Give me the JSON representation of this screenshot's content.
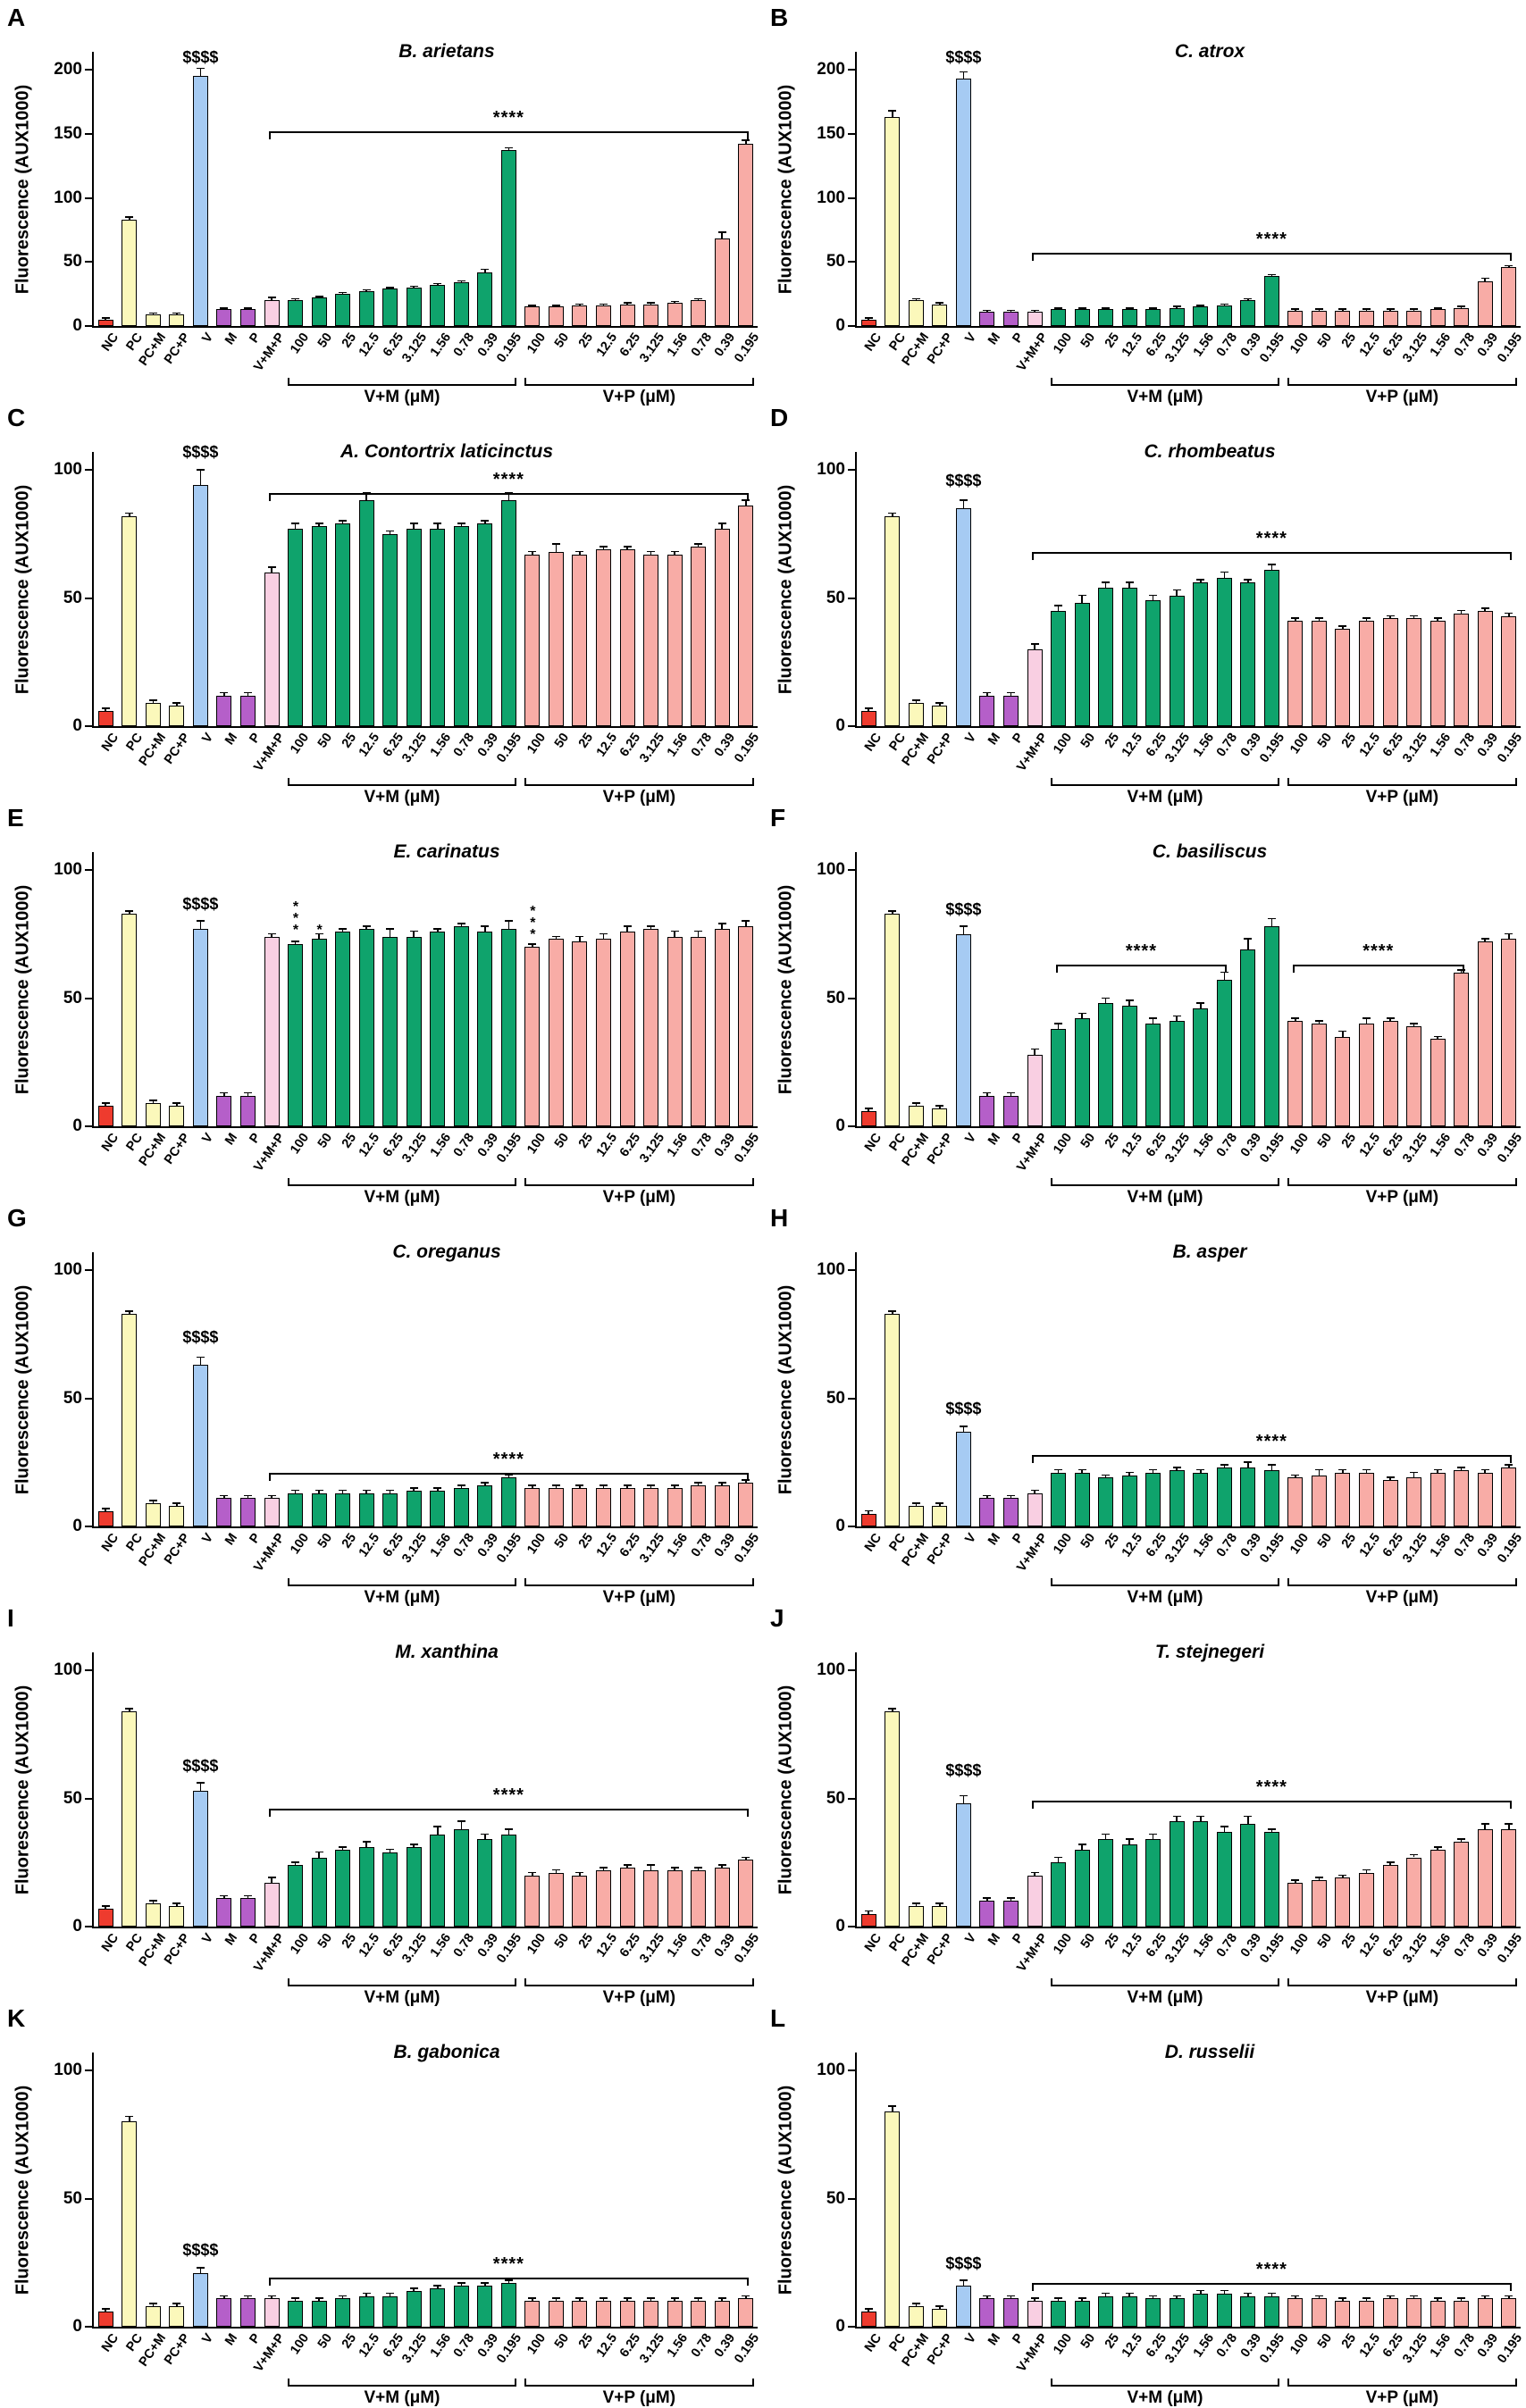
{
  "figure": {
    "ylabel": "Fluorescence (AUX1000)",
    "categories": [
      "NC",
      "PC",
      "PC+M",
      "PC+P",
      "V",
      "M",
      "P",
      "V+M+P",
      "100",
      "50",
      "25",
      "12.5",
      "6.25",
      "3.125",
      "1.56",
      "0.78",
      "0.39",
      "0.195",
      "100",
      "50",
      "25",
      "12.5",
      "6.25",
      "3.125",
      "1.56",
      "0.78",
      "0.39",
      "0.195"
    ],
    "group_brackets": [
      {
        "label": "V+M (μM)",
        "start": 8,
        "end": 17
      },
      {
        "label": "V+P (μM)",
        "start": 18,
        "end": 27
      }
    ],
    "colors": {
      "nc": "#ee3b2e",
      "pc": "#fbf8bb",
      "venom": "#a6cbf3",
      "inhibitor": "#b55fc9",
      "vmp": "#f9cfe2",
      "vm": "#0fa36c",
      "vp": "#f8aca6",
      "axis": "#000000"
    }
  },
  "chart_data": [
    {
      "panel": "A",
      "type": "bar",
      "title": "B. arietans",
      "ylim": [
        0,
        200
      ],
      "yticks": [
        0,
        50,
        100,
        150,
        200
      ],
      "values": [
        5,
        83,
        9,
        9,
        195,
        13,
        13,
        20,
        20,
        22,
        25,
        27,
        29,
        30,
        32,
        34,
        42,
        137,
        15,
        15,
        16,
        16,
        17,
        17,
        18,
        20,
        68,
        142
      ],
      "errors": [
        1,
        2,
        1,
        1,
        6,
        1,
        1,
        2,
        1,
        1,
        1,
        1,
        1,
        1,
        1,
        1,
        2,
        2,
        1,
        1,
        1,
        1,
        1,
        1,
        1,
        1,
        5,
        3
      ],
      "dollar": {
        "label": "$$$$",
        "index": 4,
        "y": 202
      },
      "sig_brackets": [
        {
          "label": "****",
          "start": 7,
          "end": 27,
          "y": 152
        }
      ],
      "star_annotations": []
    },
    {
      "panel": "B",
      "type": "bar",
      "title": "C. atrox",
      "ylim": [
        0,
        200
      ],
      "yticks": [
        0,
        50,
        100,
        150,
        200
      ],
      "values": [
        5,
        163,
        20,
        17,
        193,
        11,
        11,
        11,
        13,
        13,
        13,
        13,
        13,
        14,
        15,
        16,
        20,
        39,
        12,
        12,
        12,
        12,
        12,
        12,
        13,
        14,
        35,
        46
      ],
      "errors": [
        1,
        5,
        1,
        1,
        5,
        1,
        1,
        1,
        1,
        1,
        1,
        1,
        1,
        1,
        1,
        1,
        1,
        1,
        1,
        1,
        1,
        1,
        1,
        1,
        1,
        1,
        2,
        1
      ],
      "dollar": {
        "label": "$$$$",
        "index": 4,
        "y": 202
      },
      "sig_brackets": [
        {
          "label": "****",
          "start": 7,
          "end": 27,
          "y": 57
        }
      ],
      "star_annotations": []
    },
    {
      "panel": "C",
      "type": "bar",
      "title": "A. Contortrix laticinctus",
      "ylim": [
        0,
        100
      ],
      "yticks": [
        0,
        50,
        100
      ],
      "values": [
        6,
        82,
        9,
        8,
        94,
        12,
        12,
        60,
        77,
        78,
        79,
        88,
        75,
        77,
        77,
        78,
        79,
        88,
        67,
        68,
        67,
        69,
        69,
        67,
        67,
        70,
        77,
        86
      ],
      "errors": [
        1,
        1,
        1,
        1,
        6,
        1,
        1,
        2,
        2,
        1,
        1,
        3,
        1,
        2,
        2,
        1,
        1,
        3,
        1,
        3,
        1,
        1,
        1,
        1,
        1,
        1,
        2,
        2
      ],
      "dollar": {
        "label": "$$$$",
        "index": 4,
        "y": 103
      },
      "sig_brackets": [
        {
          "label": "****",
          "start": 7,
          "end": 27,
          "y": 91
        }
      ],
      "star_annotations": []
    },
    {
      "panel": "D",
      "type": "bar",
      "title": "C. rhombeatus",
      "ylim": [
        0,
        100
      ],
      "yticks": [
        0,
        50,
        100
      ],
      "values": [
        6,
        82,
        9,
        8,
        85,
        12,
        12,
        30,
        45,
        48,
        54,
        54,
        49,
        51,
        56,
        58,
        56,
        61,
        41,
        41,
        38,
        41,
        42,
        42,
        41,
        44,
        45,
        43
      ],
      "errors": [
        1,
        1,
        1,
        1,
        3,
        1,
        1,
        2,
        2,
        3,
        2,
        2,
        2,
        2,
        1,
        2,
        1,
        2,
        1,
        1,
        1,
        1,
        1,
        1,
        1,
        1,
        1,
        1
      ],
      "dollar": {
        "label": "$$$$",
        "index": 4,
        "y": 92
      },
      "sig_brackets": [
        {
          "label": "****",
          "start": 7,
          "end": 27,
          "y": 68
        }
      ],
      "star_annotations": []
    },
    {
      "panel": "E",
      "type": "bar",
      "title": "E. carinatus",
      "ylim": [
        0,
        100
      ],
      "yticks": [
        0,
        50,
        100
      ],
      "values": [
        8,
        83,
        9,
        8,
        77,
        12,
        12,
        74,
        71,
        73,
        76,
        77,
        74,
        74,
        76,
        78,
        76,
        77,
        70,
        73,
        72,
        73,
        76,
        77,
        74,
        74,
        77,
        78
      ],
      "errors": [
        1,
        1,
        1,
        1,
        3,
        1,
        1,
        1,
        1,
        2,
        1,
        1,
        3,
        2,
        1,
        1,
        2,
        3,
        1,
        1,
        2,
        2,
        2,
        1,
        2,
        2,
        2,
        2
      ],
      "dollar": {
        "label": "$$$$",
        "index": 4,
        "y": 83
      },
      "sig_brackets": [],
      "star_annotations": [
        {
          "label": "***",
          "index": 8,
          "y": 75
        },
        {
          "label": "*",
          "index": 9,
          "y": 75
        },
        {
          "label": "***",
          "index": 18,
          "y": 73
        }
      ]
    },
    {
      "panel": "F",
      "type": "bar",
      "title": "C. basiliscus",
      "ylim": [
        0,
        100
      ],
      "yticks": [
        0,
        50,
        100
      ],
      "values": [
        6,
        83,
        8,
        7,
        75,
        12,
        12,
        28,
        38,
        42,
        48,
        47,
        40,
        41,
        46,
        57,
        69,
        78,
        41,
        40,
        35,
        40,
        41,
        39,
        34,
        60,
        72,
        73
      ],
      "errors": [
        1,
        1,
        1,
        1,
        3,
        1,
        1,
        2,
        2,
        2,
        2,
        2,
        2,
        2,
        2,
        3,
        4,
        3,
        1,
        1,
        2,
        2,
        1,
        1,
        1,
        1,
        1,
        2
      ],
      "dollar": {
        "label": "$$$$",
        "index": 4,
        "y": 81
      },
      "sig_brackets": [
        {
          "label": "****",
          "start": 8,
          "end": 15,
          "y": 63
        },
        {
          "label": "****",
          "start": 18,
          "end": 25,
          "y": 63
        }
      ],
      "star_annotations": []
    },
    {
      "panel": "G",
      "type": "bar",
      "title": "C. oreganus",
      "ylim": [
        0,
        100
      ],
      "yticks": [
        0,
        50,
        100
      ],
      "values": [
        6,
        83,
        9,
        8,
        63,
        11,
        11,
        11,
        13,
        13,
        13,
        13,
        13,
        14,
        14,
        15,
        16,
        19,
        15,
        15,
        15,
        15,
        15,
        15,
        15,
        16,
        16,
        17
      ],
      "errors": [
        1,
        1,
        1,
        1,
        3,
        1,
        1,
        1,
        1,
        1,
        1,
        1,
        1,
        1,
        1,
        1,
        1,
        1,
        1,
        1,
        1,
        1,
        1,
        1,
        1,
        1,
        1,
        1
      ],
      "dollar": {
        "label": "$$$$",
        "index": 4,
        "y": 70
      },
      "sig_brackets": [
        {
          "label": "****",
          "start": 7,
          "end": 27,
          "y": 21
        }
      ],
      "star_annotations": []
    },
    {
      "panel": "H",
      "type": "bar",
      "title": "B. asper",
      "ylim": [
        0,
        100
      ],
      "yticks": [
        0,
        50,
        100
      ],
      "values": [
        5,
        83,
        8,
        8,
        37,
        11,
        11,
        13,
        21,
        21,
        19,
        20,
        21,
        22,
        21,
        23,
        23,
        22,
        19,
        20,
        21,
        21,
        18,
        19,
        21,
        22,
        21,
        23
      ],
      "errors": [
        1,
        1,
        1,
        1,
        2,
        1,
        1,
        1,
        1,
        1,
        1,
        1,
        1,
        1,
        1,
        1,
        2,
        2,
        1,
        2,
        1,
        1,
        1,
        2,
        1,
        1,
        1,
        1
      ],
      "dollar": {
        "label": "$$$$",
        "index": 4,
        "y": 42
      },
      "sig_brackets": [
        {
          "label": "****",
          "start": 7,
          "end": 27,
          "y": 28
        }
      ],
      "star_annotations": []
    },
    {
      "panel": "I",
      "type": "bar",
      "title": "M. xanthina",
      "ylim": [
        0,
        100
      ],
      "yticks": [
        0,
        50,
        100
      ],
      "values": [
        7,
        84,
        9,
        8,
        53,
        11,
        11,
        17,
        24,
        27,
        30,
        31,
        29,
        31,
        36,
        38,
        34,
        36,
        20,
        21,
        20,
        22,
        23,
        22,
        22,
        22,
        23,
        26
      ],
      "errors": [
        1,
        1,
        1,
        1,
        3,
        1,
        1,
        2,
        1,
        2,
        1,
        2,
        1,
        1,
        3,
        3,
        2,
        2,
        1,
        1,
        1,
        1,
        1,
        2,
        1,
        1,
        1,
        1
      ],
      "dollar": {
        "label": "$$$$",
        "index": 4,
        "y": 59
      },
      "sig_brackets": [
        {
          "label": "****",
          "start": 7,
          "end": 27,
          "y": 46
        }
      ],
      "star_annotations": []
    },
    {
      "panel": "J",
      "type": "bar",
      "title": "T. stejnegeri",
      "ylim": [
        0,
        100
      ],
      "yticks": [
        0,
        50,
        100
      ],
      "values": [
        5,
        84,
        8,
        8,
        48,
        10,
        10,
        20,
        25,
        30,
        34,
        32,
        34,
        41,
        41,
        37,
        40,
        37,
        17,
        18,
        19,
        21,
        24,
        27,
        30,
        33,
        38,
        38
      ],
      "errors": [
        1,
        1,
        1,
        1,
        3,
        1,
        1,
        1,
        2,
        2,
        2,
        2,
        2,
        2,
        2,
        2,
        3,
        1,
        1,
        1,
        1,
        1,
        1,
        1,
        1,
        1,
        2,
        2
      ],
      "dollar": {
        "label": "$$$$",
        "index": 4,
        "y": 57
      },
      "sig_brackets": [
        {
          "label": "****",
          "start": 7,
          "end": 27,
          "y": 49
        }
      ],
      "star_annotations": []
    },
    {
      "panel": "K",
      "type": "bar",
      "title": "B. gabonica",
      "ylim": [
        0,
        100
      ],
      "yticks": [
        0,
        50,
        100
      ],
      "values": [
        6,
        80,
        8,
        8,
        21,
        11,
        11,
        11,
        10,
        10,
        11,
        12,
        12,
        14,
        15,
        16,
        16,
        17,
        10,
        10,
        10,
        10,
        10,
        10,
        10,
        10,
        10,
        11
      ],
      "errors": [
        1,
        2,
        1,
        1,
        2,
        1,
        1,
        1,
        1,
        1,
        1,
        1,
        1,
        1,
        1,
        1,
        1,
        1,
        1,
        1,
        1,
        1,
        1,
        1,
        1,
        1,
        1,
        1
      ],
      "dollar": {
        "label": "$$$$",
        "index": 4,
        "y": 26
      },
      "sig_brackets": [
        {
          "label": "****",
          "start": 7,
          "end": 27,
          "y": 19
        }
      ],
      "star_annotations": []
    },
    {
      "panel": "L",
      "type": "bar",
      "title": "D. russelii",
      "ylim": [
        0,
        100
      ],
      "yticks": [
        0,
        50,
        100
      ],
      "values": [
        6,
        84,
        8,
        7,
        16,
        11,
        11,
        10,
        10,
        10,
        12,
        12,
        11,
        11,
        13,
        13,
        12,
        12,
        11,
        11,
        10,
        10,
        11,
        11,
        10,
        10,
        11,
        11
      ],
      "errors": [
        1,
        2,
        1,
        1,
        2,
        1,
        1,
        1,
        1,
        1,
        1,
        1,
        1,
        1,
        1,
        1,
        1,
        1,
        1,
        1,
        1,
        1,
        1,
        1,
        1,
        1,
        1,
        1
      ],
      "dollar": {
        "label": "$$$$",
        "index": 4,
        "y": 21
      },
      "sig_brackets": [
        {
          "label": "****",
          "start": 7,
          "end": 27,
          "y": 17
        }
      ],
      "star_annotations": []
    }
  ]
}
